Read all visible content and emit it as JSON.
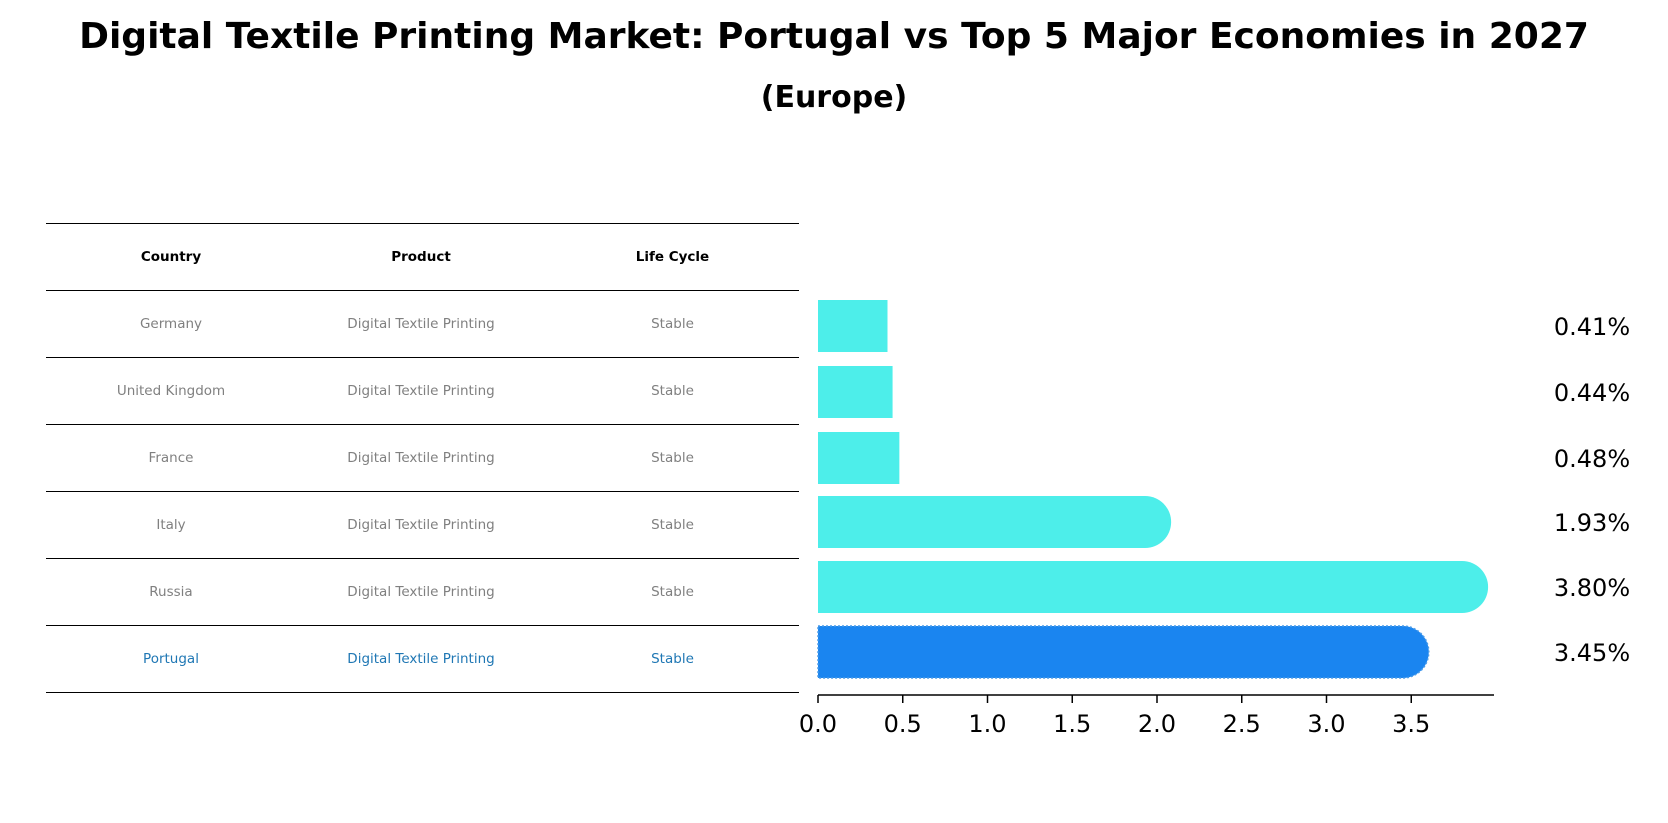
{
  "title": "Digital Textile Printing Market: Portugal vs Top 5 Major Economies in 2027",
  "subtitle": "(Europe)",
  "table": {
    "headers": [
      "Country",
      "Product",
      "Life Cycle"
    ],
    "rows": [
      {
        "country": "Germany",
        "product": "Digital Textile Printing",
        "life_cycle": "Stable"
      },
      {
        "country": "United Kingdom",
        "product": "Digital Textile Printing",
        "life_cycle": "Stable"
      },
      {
        "country": "France",
        "product": "Digital Textile Printing",
        "life_cycle": "Stable"
      },
      {
        "country": "Italy",
        "product": "Digital Textile Printing",
        "life_cycle": "Stable"
      },
      {
        "country": "Russia",
        "product": "Digital Textile Printing",
        "life_cycle": "Stable"
      },
      {
        "country": "Portugal",
        "product": "Digital Textile Printing",
        "life_cycle": "Stable"
      }
    ]
  },
  "chart_data": {
    "type": "bar",
    "orientation": "horizontal",
    "categories": [
      "Germany",
      "United Kingdom",
      "France",
      "Italy",
      "Russia",
      "Portugal"
    ],
    "values": [
      0.41,
      0.44,
      0.48,
      1.93,
      3.8,
      3.45
    ],
    "value_labels": [
      "0.41%",
      "0.44%",
      "0.48%",
      "1.93%",
      "3.80%",
      "3.45%"
    ],
    "highlight": "Portugal",
    "xlim": [
      0,
      4.0
    ],
    "xticks": [
      0.0,
      0.5,
      1.0,
      1.5,
      2.0,
      2.5,
      3.0,
      3.5
    ],
    "xtick_labels": [
      "0.0",
      "0.5",
      "1.0",
      "1.5",
      "2.0",
      "2.5",
      "3.0",
      "3.5"
    ],
    "colors": {
      "default": "#4deeea",
      "highlight": "#1a85f0",
      "table_highlight_text": "#1f77b4"
    }
  }
}
